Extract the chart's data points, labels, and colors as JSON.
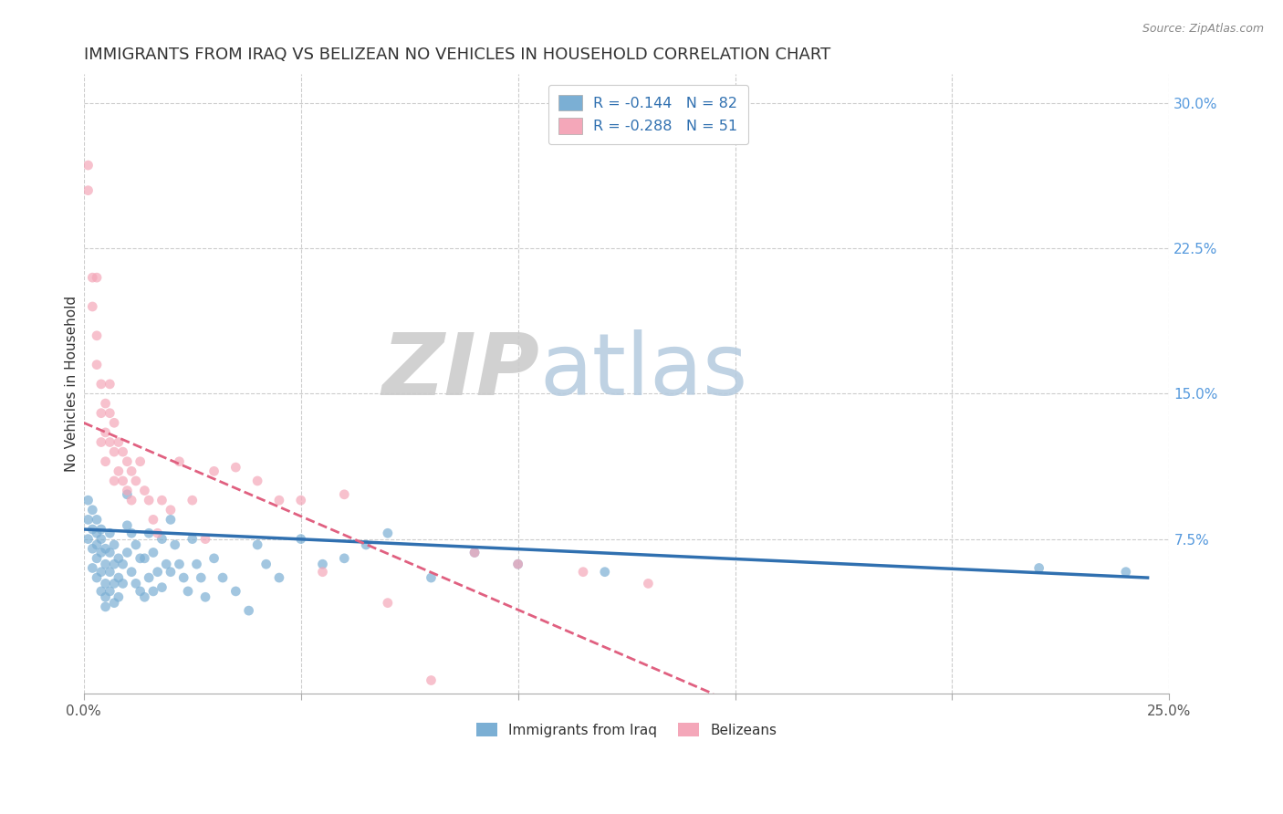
{
  "title": "IMMIGRANTS FROM IRAQ VS BELIZEAN NO VEHICLES IN HOUSEHOLD CORRELATION CHART",
  "source": "Source: ZipAtlas.com",
  "ylabel": "No Vehicles in Household",
  "xlim": [
    0.0,
    0.25
  ],
  "ylim": [
    -0.005,
    0.315
  ],
  "yticks": [
    0.075,
    0.15,
    0.225,
    0.3
  ],
  "ytick_labels": [
    "7.5%",
    "15.0%",
    "22.5%",
    "30.0%"
  ],
  "xtick_labels": [
    "0.0%",
    "",
    "",
    "",
    "",
    "25.0%"
  ],
  "xticks": [
    0.0,
    0.05,
    0.1,
    0.15,
    0.2,
    0.25
  ],
  "legend_iraq": "R = -0.144   N = 82",
  "legend_belize": "R = -0.288   N = 51",
  "legend_label_iraq": "Immigrants from Iraq",
  "legend_label_belize": "Belizeans",
  "iraq_color": "#7bafd4",
  "belize_color": "#f4a7b9",
  "iraq_line_color": "#3070b0",
  "belize_line_color": "#e06080",
  "watermark_zip": "ZIP",
  "watermark_atlas": "atlas",
  "iraq_scatter_x": [
    0.001,
    0.001,
    0.001,
    0.002,
    0.002,
    0.002,
    0.002,
    0.003,
    0.003,
    0.003,
    0.003,
    0.003,
    0.004,
    0.004,
    0.004,
    0.004,
    0.004,
    0.005,
    0.005,
    0.005,
    0.005,
    0.005,
    0.006,
    0.006,
    0.006,
    0.006,
    0.007,
    0.007,
    0.007,
    0.007,
    0.008,
    0.008,
    0.008,
    0.009,
    0.009,
    0.01,
    0.01,
    0.01,
    0.011,
    0.011,
    0.012,
    0.012,
    0.013,
    0.013,
    0.014,
    0.014,
    0.015,
    0.015,
    0.016,
    0.016,
    0.017,
    0.018,
    0.018,
    0.019,
    0.02,
    0.02,
    0.021,
    0.022,
    0.023,
    0.024,
    0.025,
    0.026,
    0.027,
    0.028,
    0.03,
    0.032,
    0.035,
    0.038,
    0.04,
    0.042,
    0.045,
    0.05,
    0.055,
    0.06,
    0.065,
    0.07,
    0.08,
    0.09,
    0.1,
    0.12,
    0.22,
    0.24
  ],
  "iraq_scatter_y": [
    0.085,
    0.095,
    0.075,
    0.08,
    0.07,
    0.09,
    0.06,
    0.085,
    0.078,
    0.065,
    0.072,
    0.055,
    0.08,
    0.068,
    0.058,
    0.048,
    0.075,
    0.07,
    0.062,
    0.052,
    0.045,
    0.04,
    0.078,
    0.068,
    0.058,
    0.048,
    0.072,
    0.062,
    0.052,
    0.042,
    0.065,
    0.055,
    0.045,
    0.062,
    0.052,
    0.098,
    0.082,
    0.068,
    0.078,
    0.058,
    0.072,
    0.052,
    0.065,
    0.048,
    0.065,
    0.045,
    0.078,
    0.055,
    0.068,
    0.048,
    0.058,
    0.075,
    0.05,
    0.062,
    0.085,
    0.058,
    0.072,
    0.062,
    0.055,
    0.048,
    0.075,
    0.062,
    0.055,
    0.045,
    0.065,
    0.055,
    0.048,
    0.038,
    0.072,
    0.062,
    0.055,
    0.075,
    0.062,
    0.065,
    0.072,
    0.078,
    0.055,
    0.068,
    0.062,
    0.058,
    0.06,
    0.058
  ],
  "belize_scatter_x": [
    0.001,
    0.001,
    0.002,
    0.002,
    0.003,
    0.003,
    0.003,
    0.004,
    0.004,
    0.004,
    0.005,
    0.005,
    0.005,
    0.006,
    0.006,
    0.006,
    0.007,
    0.007,
    0.007,
    0.008,
    0.008,
    0.009,
    0.009,
    0.01,
    0.01,
    0.011,
    0.011,
    0.012,
    0.013,
    0.014,
    0.015,
    0.016,
    0.017,
    0.018,
    0.02,
    0.022,
    0.025,
    0.028,
    0.03,
    0.035,
    0.04,
    0.045,
    0.05,
    0.055,
    0.06,
    0.07,
    0.08,
    0.09,
    0.1,
    0.115,
    0.13
  ],
  "belize_scatter_y": [
    0.268,
    0.255,
    0.21,
    0.195,
    0.18,
    0.165,
    0.21,
    0.155,
    0.14,
    0.125,
    0.145,
    0.13,
    0.115,
    0.155,
    0.14,
    0.125,
    0.135,
    0.12,
    0.105,
    0.125,
    0.11,
    0.12,
    0.105,
    0.115,
    0.1,
    0.11,
    0.095,
    0.105,
    0.115,
    0.1,
    0.095,
    0.085,
    0.078,
    0.095,
    0.09,
    0.115,
    0.095,
    0.075,
    0.11,
    0.112,
    0.105,
    0.095,
    0.095,
    0.058,
    0.098,
    0.042,
    0.002,
    0.068,
    0.062,
    0.058,
    0.052
  ],
  "iraq_trend_x": [
    0.0,
    0.245
  ],
  "iraq_trend_y": [
    0.08,
    0.055
  ],
  "belize_trend_x": [
    0.0,
    0.145
  ],
  "belize_trend_y": [
    0.135,
    -0.005
  ],
  "background_color": "#ffffff",
  "title_fontsize": 13,
  "tick_fontsize": 11,
  "label_fontsize": 11,
  "marker_size": 60
}
